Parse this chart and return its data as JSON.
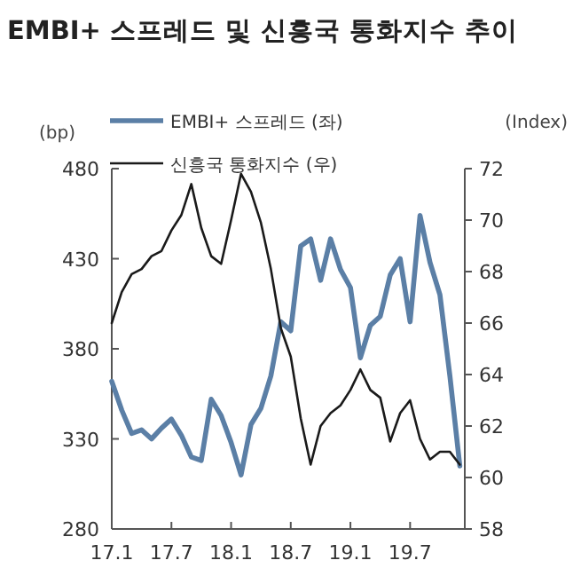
{
  "chart_data": {
    "type": "line",
    "title": "EMBI+ 스프레드 및 신흥국 통화지수 추이",
    "ylabel": "(bp)",
    "y2label": "(Index)",
    "legend": "top",
    "categories": [
      "17.1",
      null,
      null,
      null,
      null,
      null,
      "17.7",
      null,
      null,
      null,
      null,
      null,
      "18.1",
      null,
      null,
      null,
      null,
      null,
      "18.7",
      null,
      null,
      null,
      null,
      null,
      "19.1",
      null,
      null,
      null,
      null,
      null,
      "19.7",
      null,
      null,
      null,
      null,
      null
    ],
    "ylim": [
      280,
      480
    ],
    "yticks": [
      280,
      330,
      380,
      430,
      480
    ],
    "y2lim": [
      58,
      72
    ],
    "y2ticks": [
      58,
      60,
      62,
      64,
      66,
      68,
      70,
      72
    ],
    "series": [
      {
        "name": "EMBI+ 스프레드 (좌)",
        "color": "#5b7fa6",
        "values": [
          362,
          346,
          333,
          335,
          330,
          336,
          341,
          332,
          320,
          318,
          352,
          343,
          328,
          310,
          338,
          347,
          365,
          395,
          390,
          437,
          441,
          418,
          441,
          424,
          414,
          375,
          393,
          398,
          421,
          430,
          395,
          454,
          428,
          410,
          365,
          315
        ]
      },
      {
        "name": "신흥국 통화지수 (우)",
        "color": "#1a1a1a",
        "axis": "y2",
        "values": [
          66.0,
          67.2,
          67.9,
          68.1,
          68.6,
          68.8,
          69.6,
          70.2,
          71.4,
          69.7,
          68.6,
          68.3,
          70.0,
          71.8,
          71.1,
          69.9,
          68.1,
          65.8,
          64.7,
          62.3,
          60.5,
          62.0,
          62.5,
          62.8,
          63.4,
          64.2,
          63.4,
          63.1,
          61.4,
          62.5,
          63.0,
          61.5,
          60.7,
          61.0,
          61.0,
          60.5
        ]
      }
    ]
  }
}
